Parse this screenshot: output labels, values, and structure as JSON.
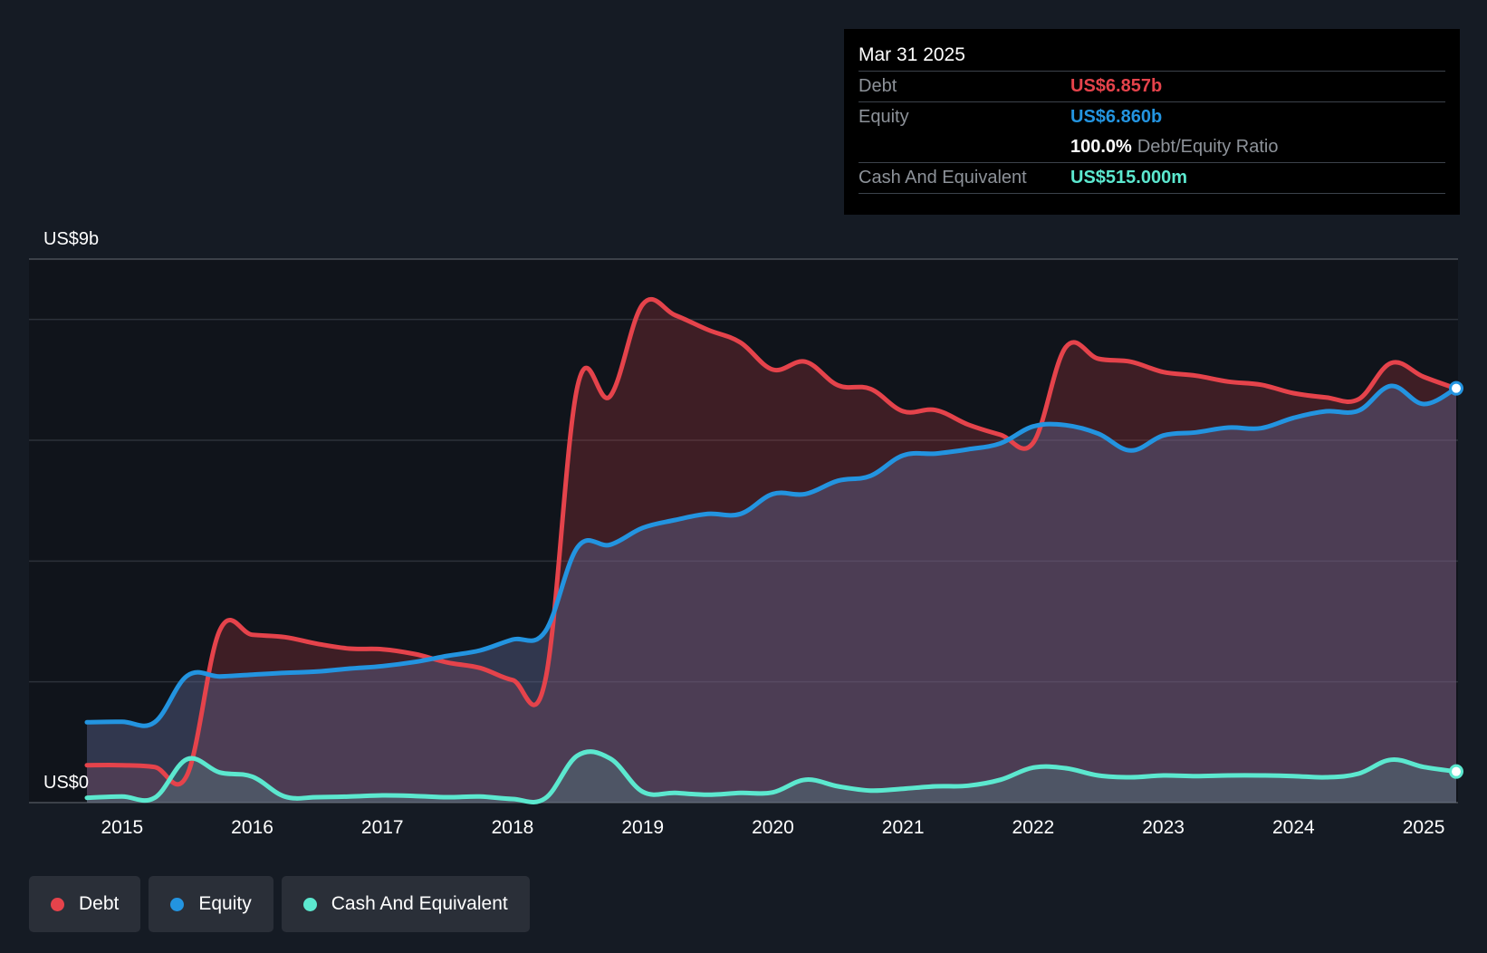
{
  "colors": {
    "debt": "#e5434b",
    "equity": "#2394e0",
    "cash": "#5ce8cf",
    "background": "#151b24",
    "plot_bg": "#10141b",
    "grid": "#2c313a",
    "axis_text": "#ffffff"
  },
  "tooltip": {
    "date": "Mar 31 2025",
    "rows": [
      {
        "label": "Debt",
        "value": "US$6.857b",
        "color": "#e5434b"
      },
      {
        "label": "Equity",
        "value": "US$6.860b",
        "color": "#2394e0"
      }
    ],
    "ratio_value": "100.0%",
    "ratio_label": "Debt/Equity Ratio",
    "cash_label": "Cash And Equivalent",
    "cash_value": "US$515.000m"
  },
  "legend": [
    {
      "label": "Debt",
      "color": "#e5434b",
      "icon": "circle-icon"
    },
    {
      "label": "Equity",
      "color": "#2394e0",
      "icon": "circle-icon"
    },
    {
      "label": "Cash And Equivalent",
      "color": "#5ce8cf",
      "icon": "circle-icon"
    }
  ],
  "chart_data": {
    "type": "area",
    "title": "",
    "xlabel": "",
    "ylabel": "",
    "y_top_label": "US$9b",
    "y_bottom_label": "US$0",
    "ylim": [
      0,
      9
    ],
    "xlim": [
      2014.73,
      2025.25
    ],
    "grid": true,
    "x_ticks": [
      "2015",
      "2016",
      "2017",
      "2018",
      "2019",
      "2020",
      "2021",
      "2022",
      "2023",
      "2024",
      "2025"
    ],
    "x_tick_values": [
      2015,
      2016,
      2017,
      2018,
      2019,
      2020,
      2021,
      2022,
      2023,
      2024,
      2025
    ],
    "highlight_x": 2025.25,
    "series": [
      {
        "name": "Debt",
        "unit": "US$b",
        "x": [
          2014.73,
          2015.0,
          2015.25,
          2015.5,
          2015.75,
          2016.0,
          2016.25,
          2016.5,
          2016.75,
          2017.0,
          2017.25,
          2017.5,
          2017.75,
          2018.0,
          2018.25,
          2018.5,
          2018.75,
          2019.0,
          2019.25,
          2019.5,
          2019.75,
          2020.0,
          2020.25,
          2020.5,
          2020.75,
          2021.0,
          2021.25,
          2021.5,
          2021.75,
          2022.0,
          2022.25,
          2022.5,
          2022.75,
          2023.0,
          2023.25,
          2023.5,
          2023.75,
          2024.0,
          2024.25,
          2024.5,
          2024.75,
          2025.0,
          2025.25
        ],
        "values": [
          0.62,
          0.62,
          0.59,
          0.46,
          2.85,
          2.78,
          2.74,
          2.63,
          2.55,
          2.54,
          2.46,
          2.32,
          2.23,
          2.03,
          2.01,
          6.9,
          6.73,
          8.25,
          8.07,
          7.83,
          7.62,
          7.17,
          7.3,
          6.91,
          6.85,
          6.48,
          6.5,
          6.26,
          6.09,
          5.96,
          7.54,
          7.35,
          7.3,
          7.13,
          7.07,
          6.97,
          6.92,
          6.78,
          6.71,
          6.68,
          7.28,
          7.05,
          6.857
        ]
      },
      {
        "name": "Equity",
        "unit": "US$b",
        "x": [
          2014.73,
          2015.0,
          2015.25,
          2015.5,
          2015.75,
          2016.0,
          2016.25,
          2016.5,
          2016.75,
          2017.0,
          2017.25,
          2017.5,
          2017.75,
          2018.0,
          2018.25,
          2018.5,
          2018.75,
          2019.0,
          2019.25,
          2019.5,
          2019.75,
          2020.0,
          2020.25,
          2020.5,
          2020.75,
          2021.0,
          2021.25,
          2021.5,
          2021.75,
          2022.0,
          2022.25,
          2022.5,
          2022.75,
          2023.0,
          2023.25,
          2023.5,
          2023.75,
          2024.0,
          2024.25,
          2024.5,
          2024.75,
          2025.0,
          2025.25
        ],
        "values": [
          1.33,
          1.34,
          1.33,
          2.1,
          2.09,
          2.12,
          2.15,
          2.17,
          2.22,
          2.26,
          2.33,
          2.43,
          2.52,
          2.7,
          2.83,
          4.23,
          4.27,
          4.55,
          4.68,
          4.78,
          4.78,
          5.11,
          5.11,
          5.33,
          5.41,
          5.75,
          5.78,
          5.85,
          5.95,
          6.23,
          6.25,
          6.11,
          5.83,
          6.08,
          6.13,
          6.21,
          6.2,
          6.37,
          6.48,
          6.49,
          6.9,
          6.6,
          6.86
        ]
      },
      {
        "name": "Cash And Equivalent",
        "unit": "US$b",
        "x": [
          2014.73,
          2015.0,
          2015.25,
          2015.5,
          2015.75,
          2016.0,
          2016.25,
          2016.5,
          2016.75,
          2017.0,
          2017.25,
          2017.5,
          2017.75,
          2018.0,
          2018.25,
          2018.5,
          2018.75,
          2019.0,
          2019.25,
          2019.5,
          2019.75,
          2020.0,
          2020.25,
          2020.5,
          2020.75,
          2021.0,
          2021.25,
          2021.5,
          2021.75,
          2022.0,
          2022.25,
          2022.5,
          2022.75,
          2023.0,
          2023.25,
          2023.5,
          2023.75,
          2024.0,
          2024.25,
          2024.5,
          2024.75,
          2025.0,
          2025.25
        ],
        "values": [
          0.08,
          0.1,
          0.08,
          0.72,
          0.5,
          0.43,
          0.1,
          0.09,
          0.1,
          0.12,
          0.11,
          0.09,
          0.1,
          0.06,
          0.07,
          0.78,
          0.73,
          0.18,
          0.16,
          0.13,
          0.16,
          0.17,
          0.38,
          0.27,
          0.2,
          0.23,
          0.27,
          0.28,
          0.38,
          0.58,
          0.57,
          0.45,
          0.42,
          0.45,
          0.44,
          0.45,
          0.45,
          0.44,
          0.42,
          0.48,
          0.71,
          0.59,
          0.515
        ]
      }
    ]
  }
}
